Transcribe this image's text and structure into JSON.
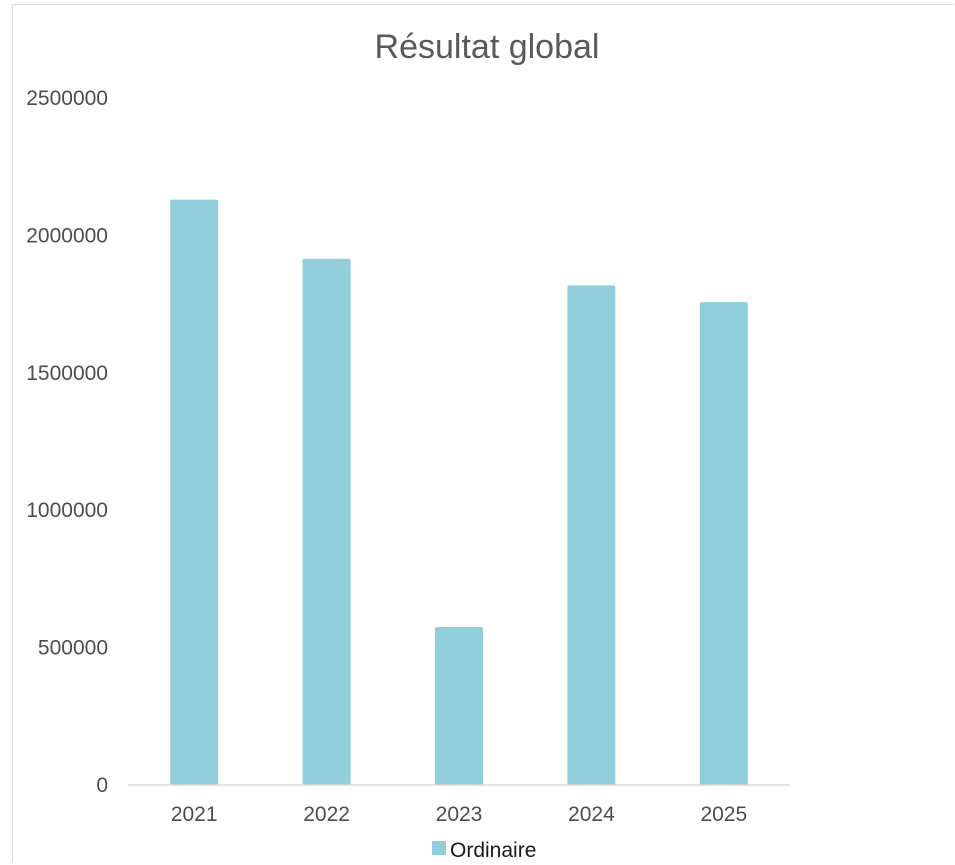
{
  "chart_data": {
    "type": "bar",
    "title": "Résultat global",
    "xlabel": "",
    "ylabel": "",
    "categories": [
      "2021",
      "2022",
      "2023",
      "2024",
      "2025"
    ],
    "series": [
      {
        "name": "Ordinaire",
        "values": [
          2130000,
          1915000,
          575000,
          1818000,
          1757000
        ]
      }
    ],
    "ylim": [
      0,
      2500000
    ],
    "yticks": [
      "0",
      "500000",
      "1000000",
      "1500000",
      "2000000",
      "2500000"
    ],
    "grid": false,
    "legend": "bottom",
    "colors": {
      "bar": "#92cddc",
      "axis": "#d9d9d9"
    }
  }
}
